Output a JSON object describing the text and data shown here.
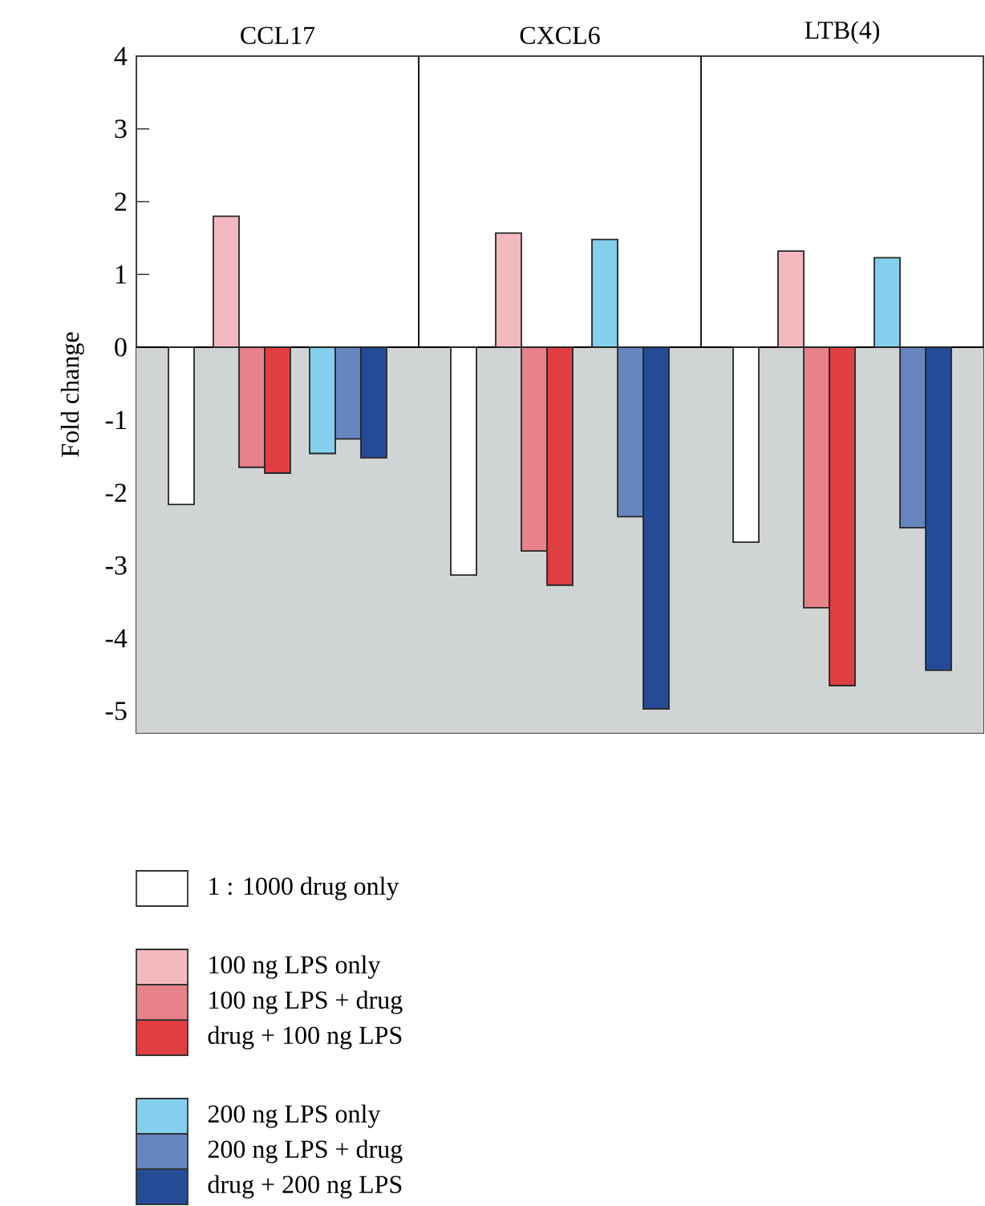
{
  "chart_data": {
    "type": "bar",
    "ylabel": "Fold change",
    "categories": [
      "CCL17",
      "CXCL6",
      "LTB(4)"
    ],
    "ylim": [
      -5.3,
      4
    ],
    "yticks": [
      -5,
      -4,
      -3,
      -2,
      -1,
      0,
      1,
      2,
      3,
      4
    ],
    "legend": "bottom",
    "bands": [
      {
        "axis": "y",
        "from": -5.3,
        "to": 0,
        "color": "#d1d4d5"
      }
    ],
    "series": [
      {
        "name": "1 : 1000 drug only",
        "color": "#ffffff",
        "values": [
          -2.16,
          -3.13,
          -2.68
        ]
      },
      {
        "name": "100 ng LPS only",
        "color": "#f4b9bf",
        "values": [
          1.8,
          1.57,
          1.32
        ]
      },
      {
        "name": "100 ng LPS + drug",
        "color": "#e8828a",
        "values": [
          -1.65,
          -2.8,
          -3.58
        ]
      },
      {
        "name": "drug + 100 ng LPS",
        "color": "#e03e43",
        "values": [
          -1.73,
          -3.27,
          -4.65
        ]
      },
      {
        "name": "200 ng LPS only",
        "color": "#84cfee",
        "values": [
          -1.46,
          1.48,
          1.23
        ]
      },
      {
        "name": "200 ng LPS + drug",
        "color": "#6685bf",
        "values": [
          -1.26,
          -2.33,
          -2.48
        ]
      },
      {
        "name": "drug + 200 ng LPS",
        "color": "#244b96",
        "values": [
          -1.52,
          -4.97,
          -4.44
        ]
      }
    ]
  }
}
